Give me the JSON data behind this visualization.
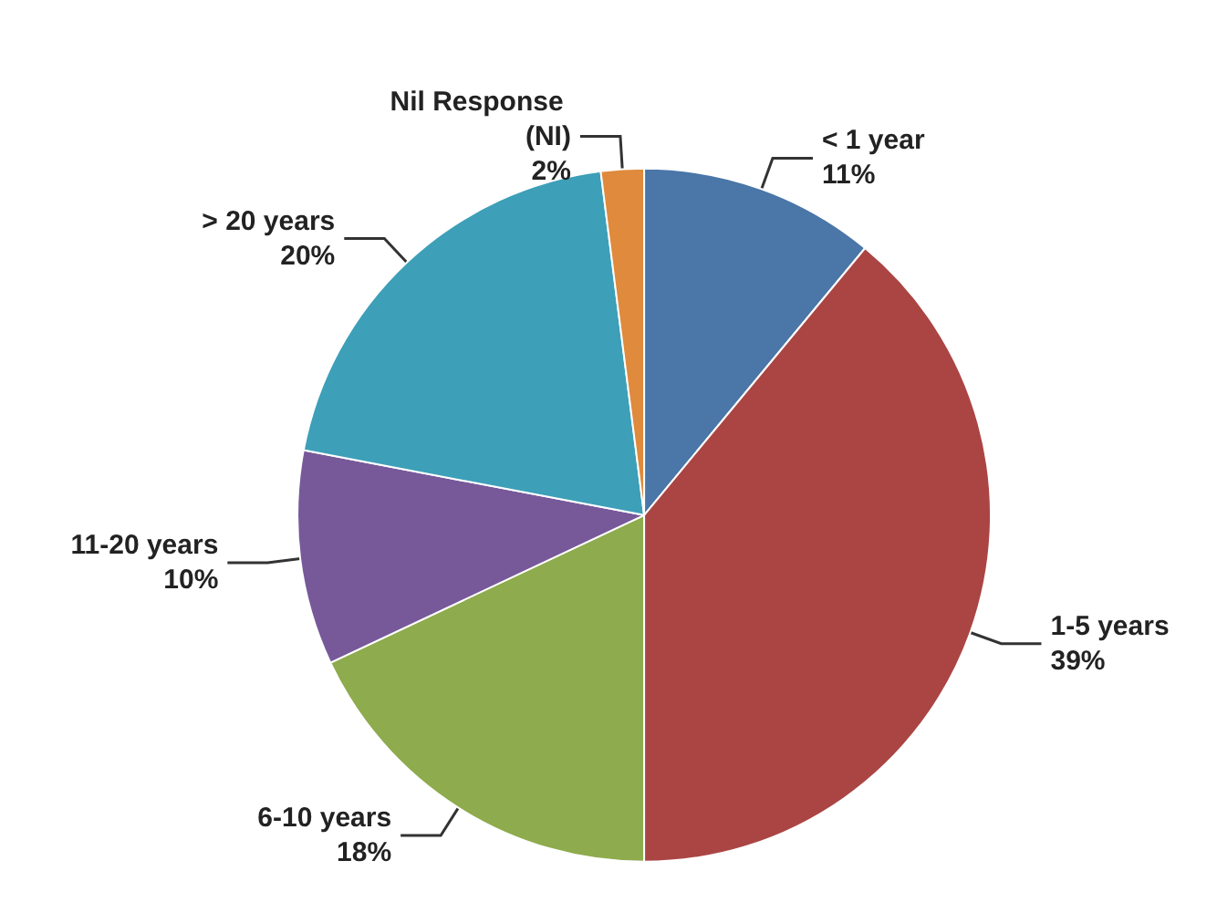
{
  "chart_data": {
    "type": "pie",
    "categories": [
      "< 1 year",
      "1-5 years",
      "6-10 years",
      "11-20 years",
      "> 20 years",
      "Nil Response (NI)"
    ],
    "values": [
      11,
      39,
      18,
      10,
      20,
      2
    ],
    "value_labels": [
      "11%",
      "39%",
      "18%",
      "10%",
      "20%",
      "2%"
    ],
    "colors": [
      "#4a76a8",
      "#aa4543",
      "#8eab4e",
      "#77599a",
      "#3d9fb8",
      "#df8a3c"
    ],
    "legend": false
  }
}
